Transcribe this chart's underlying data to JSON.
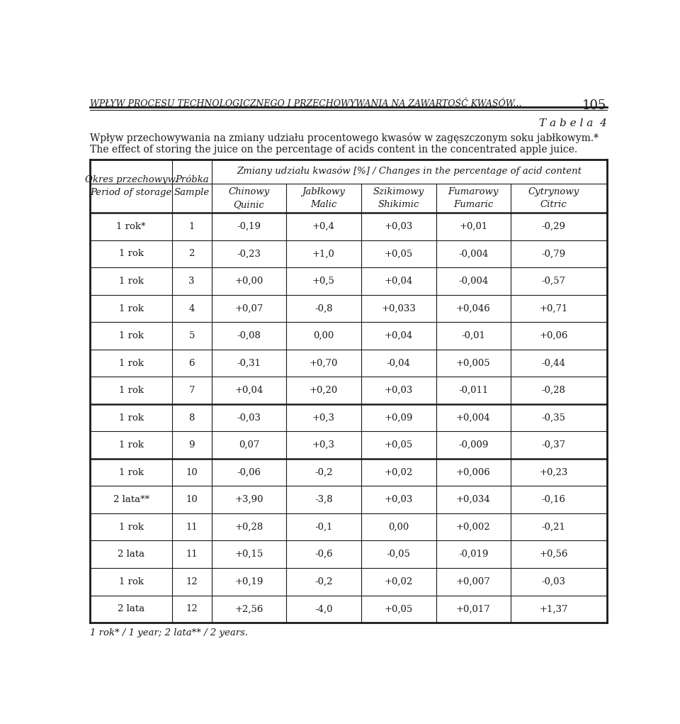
{
  "page_header": "WPŁYW PROCESU TECHNOLOGICZNEGO I PRZECHOWYWANIA NA ZAWARTOŚĆ KWASÓW...",
  "page_number": "105",
  "table_label": "T a b e l a  4",
  "caption_pl": "Wpływ przechowywania na zmiany udziału procentowego kwasów w zagęszczonym soku jabłkowym.*",
  "caption_en": "The effect of storing the juice on the percentage of acids content in the concentrated apple juice.",
  "col_header_span": "Zmiany udziału kwasów [%] / Changes in the percentage of acid content",
  "col1_header_pl": "Okres przechowyw.",
  "col1_header_en": "Period of storage",
  "col2_header_pl": "Próbka",
  "col2_header_en": "Sample",
  "col3_header_pl": "Chinowy",
  "col3_header_en": "Quinic",
  "col4_header_pl": "Jabłkowy",
  "col4_header_en": "Malic",
  "col5_header_pl": "Szikimowy",
  "col5_header_en": "Shikimic",
  "col6_header_pl": "Fumarowy",
  "col6_header_en": "Fumaric",
  "col7_header_pl": "Cytrynowy",
  "col7_header_en": "Citric",
  "rows": [
    [
      "1 rok*",
      "1",
      "-0,19",
      "+0,4",
      "+0,03",
      "+0,01",
      "-0,29"
    ],
    [
      "1 rok",
      "2",
      "-0,23",
      "+1,0",
      "+0,05",
      "-0,004",
      "-0,79"
    ],
    [
      "1 rok",
      "3",
      "+0,00",
      "+0,5",
      "+0,04",
      "-0,004",
      "-0,57"
    ],
    [
      "1 rok",
      "4",
      "+0,07",
      "-0,8",
      "+0,033",
      "+0,046",
      "+0,71"
    ],
    [
      "1 rok",
      "5",
      "-0,08",
      "0,00",
      "+0,04",
      "-0,01",
      "+0,06"
    ],
    [
      "1 rok",
      "6",
      "-0,31",
      "+0,70",
      "-0,04",
      "+0,005",
      "-0,44"
    ],
    [
      "1 rok",
      "7",
      "+0,04",
      "+0,20",
      "+0,03",
      "-0,011",
      "-0,28"
    ],
    [
      "1 rok",
      "8",
      "-0,03",
      "+0,3",
      "+0,09",
      "+0,004",
      "-0,35"
    ],
    [
      "1 rok",
      "9",
      "0,07",
      "+0,3",
      "+0,05",
      "-0,009",
      "-0,37"
    ],
    [
      "1 rok",
      "10",
      "-0,06",
      "-0,2",
      "+0,02",
      "+0,006",
      "+0,23"
    ],
    [
      "2 lata**",
      "10",
      "+3,90",
      "-3,8",
      "+0,03",
      "+0,034",
      "-0,16"
    ],
    [
      "1 rok",
      "11",
      "+0,28",
      "-0,1",
      "0,00",
      "+0,002",
      "-0,21"
    ],
    [
      "2 lata",
      "11",
      "+0,15",
      "-0,6",
      "-0,05",
      "-0,019",
      "+0,56"
    ],
    [
      "1 rok",
      "12",
      "+0,19",
      "-0,2",
      "+0,02",
      "+0,007",
      "-0,03"
    ],
    [
      "2 lata",
      "12",
      "+2,56",
      "-4,0",
      "+0,05",
      "+0,017",
      "+1,37"
    ]
  ],
  "footnote": "1 rok* / 1 year; 2 lata** / 2 years.",
  "bg_color": "#ffffff",
  "text_color": "#1a1a1a",
  "header_color": "#1a1a1a",
  "grid_color": "#1a1a1a",
  "header_font_size": 9.5,
  "body_font_size": 9.5,
  "title_font_size": 10,
  "page_header_font_size": 9
}
